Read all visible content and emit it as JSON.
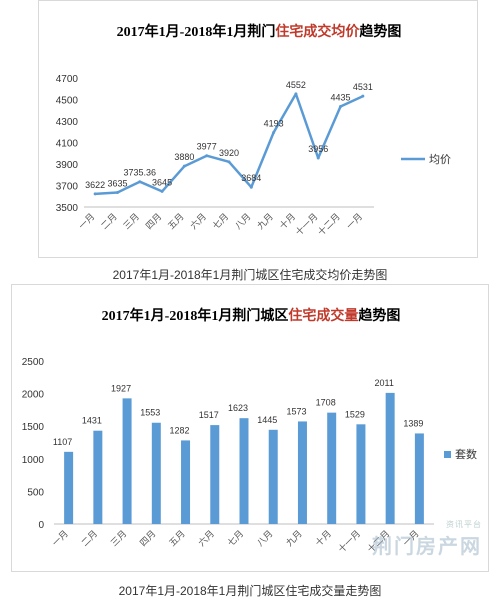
{
  "chart_data": [
    {
      "type": "line",
      "title_prefix": "2017年1月-2018年1月荆门",
      "title_accent": "住宅成交均价",
      "title_suffix": "趋势图",
      "caption": "2017年1月-2018年1月荆门城区住宅成交均价走势图",
      "categories": [
        "一月",
        "二月",
        "三月",
        "四月",
        "五月",
        "六月",
        "七月",
        "八月",
        "九月",
        "十月",
        "十一月",
        "十二月",
        "一月"
      ],
      "series": [
        {
          "name": "均价",
          "values": [
            3622,
            3635,
            3735.36,
            3645,
            3880,
            3977,
            3920,
            3684,
            4193,
            4552,
            3956,
            4435,
            4531
          ]
        }
      ],
      "data_labels": [
        "3622",
        "3635",
        "3735.36",
        "3645",
        "3880",
        "3977",
        "3920",
        "3684",
        "4193",
        "4552",
        "3956",
        "4435",
        "4531"
      ],
      "ylim": [
        3500,
        4700
      ],
      "yticks": [
        3500,
        3700,
        3900,
        4100,
        4300,
        4500,
        4700
      ],
      "color": "#5b9bd5",
      "legend": "right",
      "grid": false
    },
    {
      "type": "bar",
      "title_prefix": "2017年1月-2018年1月荆门城区",
      "title_accent": "住宅成交量",
      "title_suffix": "趋势图",
      "caption": "2017年1月-2018年1月荆门城区住宅成交量走势图",
      "categories": [
        "一月",
        "二月",
        "三月",
        "四月",
        "五月",
        "六月",
        "七月",
        "八月",
        "九月",
        "十月",
        "十一月",
        "十二月",
        "一月"
      ],
      "series": [
        {
          "name": "套数",
          "values": [
            1107,
            1431,
            1927,
            1553,
            1282,
            1517,
            1623,
            1445,
            1573,
            1708,
            1529,
            2011,
            1389
          ]
        }
      ],
      "ylim": [
        0,
        2500
      ],
      "yticks": [
        0,
        500,
        1000,
        1500,
        2000,
        2500
      ],
      "color": "#5b9bd5",
      "legend": "right",
      "grid": false
    }
  ],
  "watermark": {
    "small": "资讯平台",
    "big": "荆门房产网"
  }
}
